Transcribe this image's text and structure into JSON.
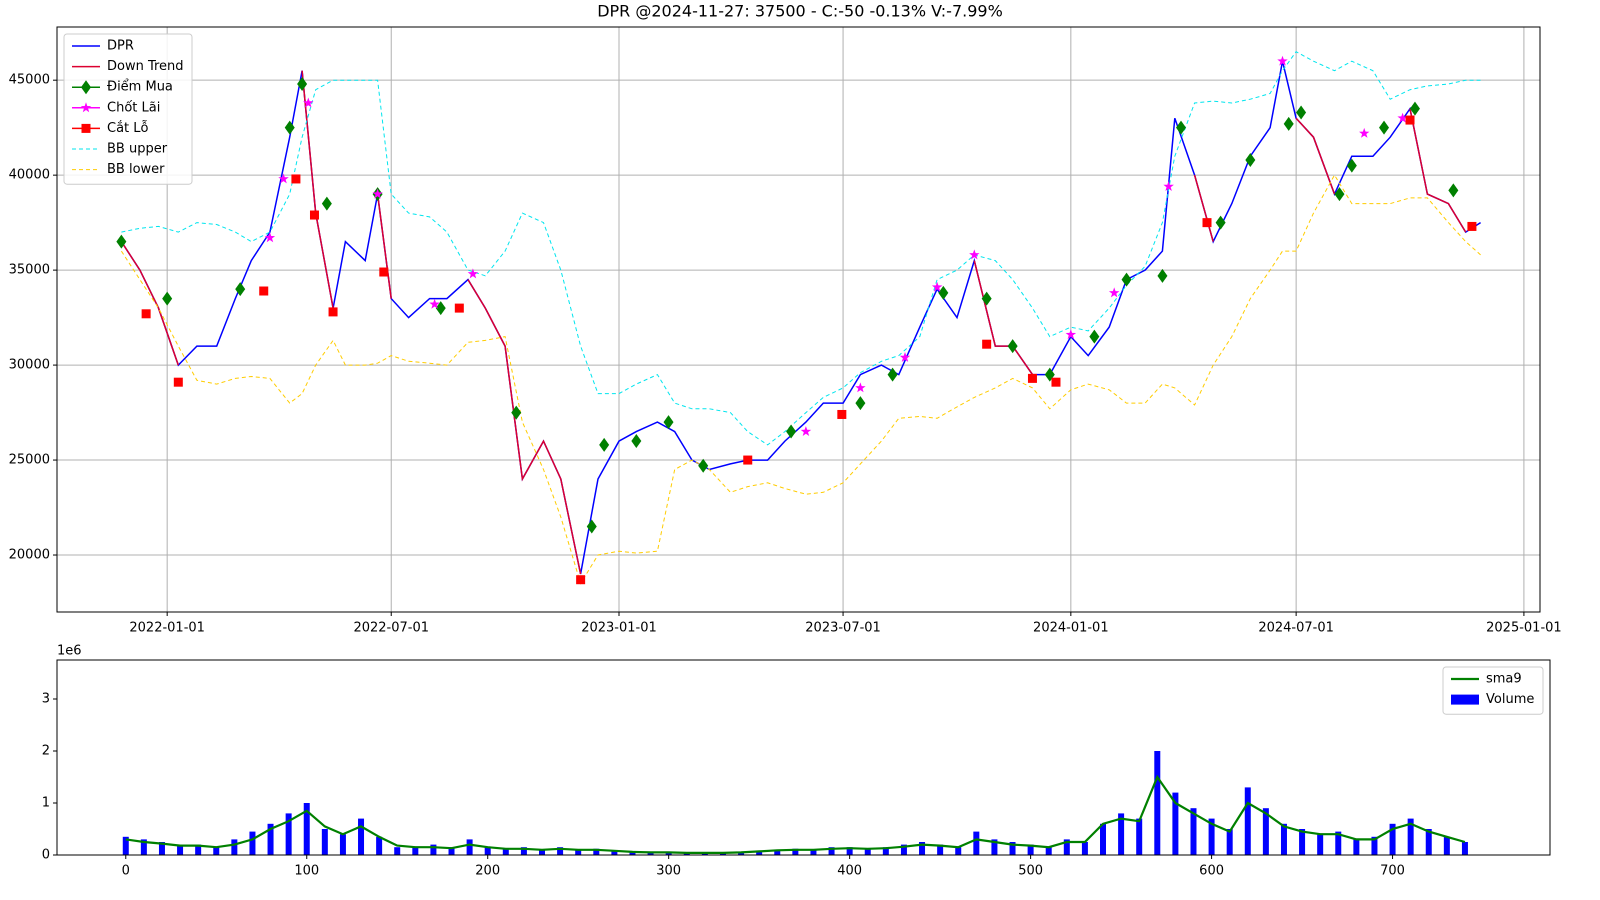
{
  "chart_data": [
    {
      "type": "line",
      "x_type": "date",
      "title": "DPR @2024-11-27: 37500 - C:-50 -0.13% V:-7.99%",
      "x": [
        "2021-11-25",
        "2021-12-10",
        "2021-12-25",
        "2022-01-10",
        "2022-01-25",
        "2022-02-10",
        "2022-02-25",
        "2022-03-10",
        "2022-03-25",
        "2022-04-10",
        "2022-04-20",
        "2022-05-01",
        "2022-05-15",
        "2022-05-25",
        "2022-06-10",
        "2022-06-20",
        "2022-07-01",
        "2022-07-15",
        "2022-08-01",
        "2022-08-15",
        "2022-09-01",
        "2022-09-15",
        "2022-10-01",
        "2022-10-15",
        "2022-11-01",
        "2022-11-15",
        "2022-12-01",
        "2022-12-15",
        "2023-01-01",
        "2023-01-15",
        "2023-02-01",
        "2023-02-15",
        "2023-03-01",
        "2023-03-15",
        "2023-04-01",
        "2023-04-15",
        "2023-05-01",
        "2023-05-15",
        "2023-06-01",
        "2023-06-15",
        "2023-07-01",
        "2023-07-15",
        "2023-08-01",
        "2023-08-15",
        "2023-09-01",
        "2023-09-15",
        "2023-10-01",
        "2023-10-15",
        "2023-11-01",
        "2023-11-15",
        "2023-12-01",
        "2023-12-15",
        "2024-01-01",
        "2024-01-15",
        "2024-02-01",
        "2024-02-15",
        "2024-03-01",
        "2024-03-15",
        "2024-03-25",
        "2024-04-10",
        "2024-04-25",
        "2024-05-10",
        "2024-05-25",
        "2024-06-10",
        "2024-06-20",
        "2024-07-01",
        "2024-07-15",
        "2024-08-01",
        "2024-08-15",
        "2024-09-01",
        "2024-09-15",
        "2024-10-01",
        "2024-10-15",
        "2024-11-01",
        "2024-11-15",
        "2024-11-27"
      ],
      "series": [
        {
          "name": "DPR",
          "kind": "line",
          "color": "#0000ff",
          "width": 1.5,
          "values": [
            36500,
            35000,
            33000,
            30000,
            31000,
            31000,
            33500,
            35500,
            37000,
            42000,
            45500,
            38000,
            33000,
            36500,
            35500,
            39000,
            33500,
            32500,
            33500,
            33500,
            34500,
            33000,
            31000,
            24000,
            26000,
            24000,
            19000,
            24000,
            26000,
            26500,
            27000,
            26500,
            25000,
            24500,
            24800,
            25000,
            25000,
            26000,
            27000,
            28000,
            28000,
            29500,
            30000,
            29500,
            32000,
            34000,
            32500,
            35500,
            31000,
            31000,
            29500,
            29500,
            31500,
            30500,
            32000,
            34500,
            35000,
            36000,
            43000,
            40000,
            36500,
            38500,
            41000,
            42500,
            46000,
            43000,
            42000,
            39000,
            41000,
            41000,
            42000,
            43500,
            39000,
            38500,
            37000,
            37500
          ]
        },
        {
          "name": "Down Trend",
          "kind": "line",
          "color": "#dc0030",
          "width": 1.5,
          "values": [
            36500,
            35000,
            33000,
            30000,
            null,
            null,
            null,
            null,
            null,
            null,
            45500,
            38000,
            33000,
            null,
            null,
            39000,
            33500,
            null,
            null,
            null,
            34500,
            33000,
            31000,
            24000,
            26000,
            24000,
            19000,
            null,
            null,
            null,
            null,
            null,
            null,
            null,
            null,
            null,
            null,
            null,
            null,
            null,
            null,
            null,
            null,
            null,
            null,
            null,
            null,
            35500,
            31000,
            31000,
            29500,
            null,
            null,
            null,
            null,
            null,
            null,
            null,
            null,
            40000,
            36500,
            null,
            null,
            null,
            null,
            43000,
            42000,
            39000,
            null,
            null,
            null,
            43500,
            39000,
            38500,
            37000,
            null
          ]
        },
        {
          "name": "Điểm Mua",
          "kind": "scatter",
          "marker": "D",
          "color": "#008000",
          "x": [
            "2021-11-25",
            "2022-01-01",
            "2022-03-01",
            "2022-04-10",
            "2022-04-20",
            "2022-05-10",
            "2022-06-20",
            "2022-08-10",
            "2022-10-10",
            "2022-12-10",
            "2022-12-20",
            "2023-01-15",
            "2023-02-10",
            "2023-03-10",
            "2023-05-20",
            "2023-07-15",
            "2023-08-10",
            "2023-09-20",
            "2023-10-25",
            "2023-11-15",
            "2023-12-15",
            "2024-01-20",
            "2024-02-15",
            "2024-03-15",
            "2024-03-30",
            "2024-05-01",
            "2024-05-25",
            "2024-06-25",
            "2024-07-05",
            "2024-08-05",
            "2024-08-15",
            "2024-09-10",
            "2024-10-05",
            "2024-11-05"
          ],
          "values": [
            36500,
            33500,
            34000,
            42500,
            44800,
            38500,
            39000,
            33000,
            27500,
            21500,
            25800,
            26000,
            27000,
            24700,
            26500,
            28000,
            29500,
            33800,
            33500,
            31000,
            29500,
            31500,
            34500,
            34700,
            42500,
            37500,
            40800,
            42700,
            43300,
            39000,
            40500,
            42500,
            43500,
            39200
          ]
        },
        {
          "name": "Chốt Lãi",
          "kind": "scatter",
          "marker": "*",
          "color": "#ff00ff",
          "x": [
            "2022-03-25",
            "2022-04-05",
            "2022-04-25",
            "2022-06-20",
            "2022-08-05",
            "2022-09-05",
            "2023-06-01",
            "2023-07-15",
            "2023-08-20",
            "2023-09-15",
            "2023-10-15",
            "2024-01-01",
            "2024-02-05",
            "2024-03-20",
            "2024-06-20",
            "2024-08-25",
            "2024-09-25"
          ],
          "values": [
            36700,
            39800,
            43800,
            39000,
            33200,
            34800,
            26500,
            28800,
            30400,
            34100,
            35800,
            31600,
            33800,
            39400,
            46000,
            42200,
            43000
          ]
        },
        {
          "name": "Cắt Lỗ",
          "kind": "scatter",
          "marker": "s",
          "color": "#ff0000",
          "x": [
            "2021-12-15",
            "2022-01-10",
            "2022-03-20",
            "2022-04-15",
            "2022-04-30",
            "2022-05-15",
            "2022-06-25",
            "2022-08-25",
            "2022-12-01",
            "2023-04-15",
            "2023-06-30",
            "2023-10-25",
            "2023-12-01",
            "2023-12-20",
            "2024-04-20",
            "2024-10-01",
            "2024-11-20"
          ],
          "values": [
            32700,
            29100,
            33900,
            39800,
            37900,
            32800,
            34900,
            33000,
            18700,
            25000,
            27400,
            31100,
            29300,
            29100,
            37500,
            42900,
            37300
          ]
        },
        {
          "name": "BB upper",
          "kind": "line",
          "linestyle": "dashed",
          "color": "#00e5ee",
          "width": 1,
          "values": [
            37000,
            37200,
            37300,
            37000,
            37500,
            37400,
            37000,
            36500,
            37000,
            39000,
            42000,
            44500,
            45000,
            45000,
            45000,
            45000,
            39000,
            38000,
            37800,
            37000,
            35000,
            34700,
            36000,
            38000,
            37500,
            35000,
            31000,
            28500,
            28500,
            29000,
            29500,
            28000,
            27700,
            27700,
            27500,
            26500,
            25800,
            26500,
            27500,
            28300,
            28800,
            29600,
            30200,
            30500,
            31500,
            34500,
            35000,
            35800,
            35500,
            34500,
            33000,
            31500,
            32000,
            31800,
            33000,
            34200,
            35200,
            37500,
            41000,
            43800,
            43900,
            43800,
            44000,
            44300,
            45500,
            46500,
            46000,
            45500,
            46000,
            45500,
            44000,
            44500,
            44700,
            44800,
            45000,
            45000
          ]
        },
        {
          "name": "BB lower",
          "kind": "line",
          "linestyle": "dashed",
          "color": "#ffcc00",
          "width": 1,
          "values": [
            36000,
            34500,
            33000,
            31000,
            29200,
            29000,
            29300,
            29400,
            29300,
            28000,
            28500,
            30000,
            31300,
            30000,
            30000,
            30100,
            30500,
            30200,
            30100,
            30000,
            31200,
            31300,
            31500,
            27000,
            24500,
            22000,
            18500,
            20000,
            20200,
            20100,
            20200,
            24500,
            25000,
            24500,
            23300,
            23600,
            23800,
            23500,
            23200,
            23300,
            23800,
            24800,
            26000,
            27200,
            27300,
            27200,
            27800,
            28300,
            28800,
            29300,
            28800,
            27700,
            28700,
            29000,
            28700,
            28000,
            28000,
            29000,
            28800,
            27900,
            30000,
            31500,
            33500,
            35000,
            36000,
            36000,
            38000,
            40000,
            38500,
            38500,
            38500,
            38800,
            38800,
            37500,
            36500,
            35800
          ]
        }
      ],
      "xlim": [
        "2021-10-04",
        "2025-01-14"
      ],
      "xticks": [
        "2022-01-01",
        "2022-07-01",
        "2023-01-01",
        "2023-07-01",
        "2024-01-01",
        "2024-07-01",
        "2025-01-01"
      ],
      "ylim": [
        17000,
        47800
      ],
      "yticks": [
        20000,
        25000,
        30000,
        35000,
        40000,
        45000
      ],
      "grid": true,
      "legend": "upper left"
    },
    {
      "type": "bar",
      "x_type": "number",
      "y_offset_label": "1e6",
      "x": [
        0,
        10,
        20,
        30,
        40,
        50,
        60,
        70,
        80,
        90,
        100,
        110,
        120,
        130,
        140,
        150,
        160,
        170,
        180,
        190,
        200,
        210,
        220,
        230,
        240,
        250,
        260,
        270,
        280,
        290,
        300,
        310,
        320,
        330,
        340,
        350,
        360,
        370,
        380,
        390,
        400,
        410,
        420,
        430,
        440,
        450,
        460,
        470,
        480,
        490,
        500,
        510,
        520,
        530,
        540,
        550,
        560,
        570,
        580,
        590,
        600,
        610,
        620,
        630,
        640,
        650,
        660,
        670,
        680,
        690,
        700,
        710,
        720,
        730,
        740
      ],
      "series": [
        {
          "name": "sma9",
          "kind": "line",
          "color": "#008000",
          "width": 2.2,
          "values": [
            0.3,
            0.25,
            0.22,
            0.18,
            0.18,
            0.15,
            0.2,
            0.3,
            0.5,
            0.65,
            0.85,
            0.55,
            0.4,
            0.55,
            0.35,
            0.18,
            0.15,
            0.15,
            0.13,
            0.2,
            0.15,
            0.12,
            0.12,
            0.1,
            0.12,
            0.1,
            0.1,
            0.08,
            0.06,
            0.05,
            0.05,
            0.04,
            0.04,
            0.04,
            0.05,
            0.07,
            0.09,
            0.1,
            0.1,
            0.12,
            0.13,
            0.12,
            0.13,
            0.16,
            0.2,
            0.18,
            0.15,
            0.3,
            0.25,
            0.2,
            0.18,
            0.15,
            0.25,
            0.25,
            0.6,
            0.7,
            0.65,
            1.5,
            1.0,
            0.8,
            0.6,
            0.45,
            1.0,
            0.8,
            0.55,
            0.45,
            0.4,
            0.4,
            0.3,
            0.3,
            0.5,
            0.6,
            0.45,
            0.35,
            0.25
          ]
        },
        {
          "name": "Volume",
          "kind": "bar",
          "color": "#0000ff",
          "values": [
            0.35,
            0.3,
            0.25,
            0.2,
            0.2,
            0.15,
            0.3,
            0.45,
            0.6,
            0.8,
            1.0,
            0.5,
            0.4,
            0.7,
            0.35,
            0.15,
            0.15,
            0.2,
            0.15,
            0.3,
            0.15,
            0.12,
            0.15,
            0.1,
            0.15,
            0.1,
            0.12,
            0.08,
            0.06,
            0.05,
            0.06,
            0.05,
            0.04,
            0.04,
            0.06,
            0.08,
            0.1,
            0.12,
            0.1,
            0.15,
            0.15,
            0.12,
            0.15,
            0.2,
            0.25,
            0.2,
            0.15,
            0.45,
            0.3,
            0.25,
            0.2,
            0.15,
            0.3,
            0.25,
            0.6,
            0.8,
            0.7,
            2.0,
            1.2,
            0.9,
            0.7,
            0.5,
            1.3,
            0.9,
            0.6,
            0.5,
            0.4,
            0.45,
            0.3,
            0.35,
            0.6,
            0.7,
            0.5,
            0.35,
            0.25
          ]
        }
      ],
      "xlim": [
        -38,
        787
      ],
      "xticks": [
        0,
        100,
        200,
        300,
        400,
        500,
        600,
        700
      ],
      "ylim": [
        0,
        3.75
      ],
      "yticks": [
        0,
        1,
        2,
        3
      ],
      "grid": false,
      "legend": "upper right"
    }
  ]
}
